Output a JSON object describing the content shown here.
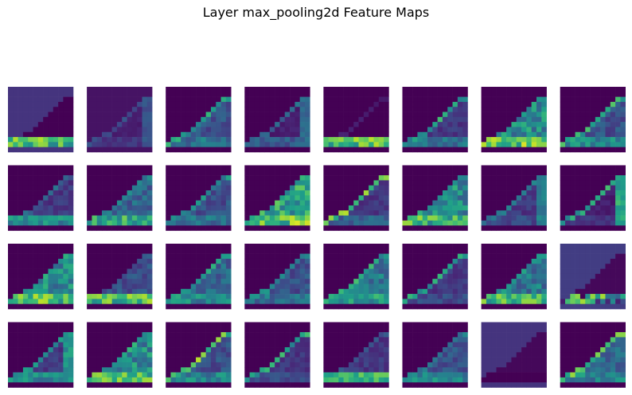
{
  "chart_data": {
    "type": "heatmap",
    "title": "Layer max_pooling2d Feature Maps",
    "layout": {
      "rows": 4,
      "cols": 8
    },
    "map_size": [
      13,
      13
    ],
    "colormap": "viridis",
    "axes_visible": false,
    "maps": [
      {
        "index": 0,
        "background": 0.15,
        "body": 0.0,
        "sole": 0.9,
        "edges": 0.0,
        "band": "low"
      },
      {
        "index": 1,
        "background": 0.05,
        "body": 0.1,
        "sole": 0.2,
        "edges": 0.3,
        "band": "right"
      },
      {
        "index": 2,
        "background": 0.0,
        "body": 0.3,
        "sole": 0.5,
        "edges": 0.7,
        "band": "top"
      },
      {
        "index": 3,
        "background": 0.0,
        "body": 0.1,
        "sole": 0.4,
        "edges": 0.4,
        "band": "right"
      },
      {
        "index": 4,
        "background": 0.0,
        "body": 0.0,
        "sole": 0.9,
        "edges": 0.1,
        "band": "low"
      },
      {
        "index": 5,
        "background": 0.0,
        "body": 0.2,
        "sole": 0.5,
        "edges": 0.7,
        "band": "top"
      },
      {
        "index": 6,
        "background": 0.0,
        "body": 0.6,
        "sole": 0.95,
        "edges": 0.4,
        "band": "body"
      },
      {
        "index": 7,
        "background": 0.0,
        "body": 0.3,
        "sole": 0.6,
        "edges": 0.8,
        "band": "top"
      },
      {
        "index": 8,
        "background": 0.0,
        "body": 0.2,
        "sole": 0.6,
        "edges": 0.4,
        "band": "low"
      },
      {
        "index": 9,
        "background": 0.0,
        "body": 0.4,
        "sole": 0.8,
        "edges": 0.5,
        "band": "body"
      },
      {
        "index": 10,
        "background": 0.0,
        "body": 0.3,
        "sole": 0.5,
        "edges": 0.6,
        "band": "top"
      },
      {
        "index": 11,
        "background": 0.0,
        "body": 0.7,
        "sole": 0.95,
        "edges": 0.5,
        "band": "body"
      },
      {
        "index": 12,
        "background": 0.0,
        "body": 0.2,
        "sole": 0.4,
        "edges": 0.9,
        "band": "top"
      },
      {
        "index": 13,
        "background": 0.0,
        "body": 0.6,
        "sole": 0.85,
        "edges": 0.5,
        "band": "body"
      },
      {
        "index": 14,
        "background": 0.0,
        "body": 0.2,
        "sole": 0.3,
        "edges": 0.5,
        "band": "right"
      },
      {
        "index": 15,
        "background": 0.0,
        "body": 0.1,
        "sole": 0.2,
        "edges": 0.7,
        "band": "right"
      },
      {
        "index": 16,
        "background": 0.0,
        "body": 0.6,
        "sole": 0.9,
        "edges": 0.4,
        "band": "body"
      },
      {
        "index": 17,
        "background": 0.0,
        "body": 0.3,
        "sole": 0.9,
        "edges": 0.3,
        "band": "low"
      },
      {
        "index": 18,
        "background": 0.0,
        "body": 0.4,
        "sole": 0.6,
        "edges": 0.7,
        "band": "top"
      },
      {
        "index": 19,
        "background": 0.0,
        "body": 0.3,
        "sole": 0.5,
        "edges": 0.6,
        "band": "top"
      },
      {
        "index": 20,
        "background": 0.0,
        "body": 0.5,
        "sole": 0.7,
        "edges": 0.7,
        "band": "body"
      },
      {
        "index": 21,
        "background": 0.0,
        "body": 0.2,
        "sole": 0.3,
        "edges": 0.7,
        "band": "top"
      },
      {
        "index": 22,
        "background": 0.0,
        "body": 0.5,
        "sole": 0.85,
        "edges": 0.6,
        "band": "body"
      },
      {
        "index": 23,
        "background": 0.18,
        "body": 0.0,
        "sole": 0.9,
        "edges": 0.0,
        "band": "inverse"
      },
      {
        "index": 24,
        "background": 0.0,
        "body": 0.2,
        "sole": 0.6,
        "edges": 0.6,
        "band": "right"
      },
      {
        "index": 25,
        "background": 0.0,
        "body": 0.6,
        "sole": 0.95,
        "edges": 0.7,
        "band": "body"
      },
      {
        "index": 26,
        "background": 0.0,
        "body": 0.3,
        "sole": 0.6,
        "edges": 0.9,
        "band": "top"
      },
      {
        "index": 27,
        "background": 0.0,
        "body": 0.2,
        "sole": 0.3,
        "edges": 0.7,
        "band": "top"
      },
      {
        "index": 28,
        "background": 0.0,
        "body": 0.2,
        "sole": 0.8,
        "edges": 0.3,
        "band": "low"
      },
      {
        "index": 29,
        "background": 0.0,
        "body": 0.3,
        "sole": 0.6,
        "edges": 0.5,
        "band": "top"
      },
      {
        "index": 30,
        "background": 0.15,
        "body": 0.0,
        "sole": 0.0,
        "edges": 0.7,
        "band": "inverse"
      },
      {
        "index": 31,
        "background": 0.0,
        "body": 0.4,
        "sole": 0.6,
        "edges": 0.9,
        "band": "top"
      }
    ]
  }
}
